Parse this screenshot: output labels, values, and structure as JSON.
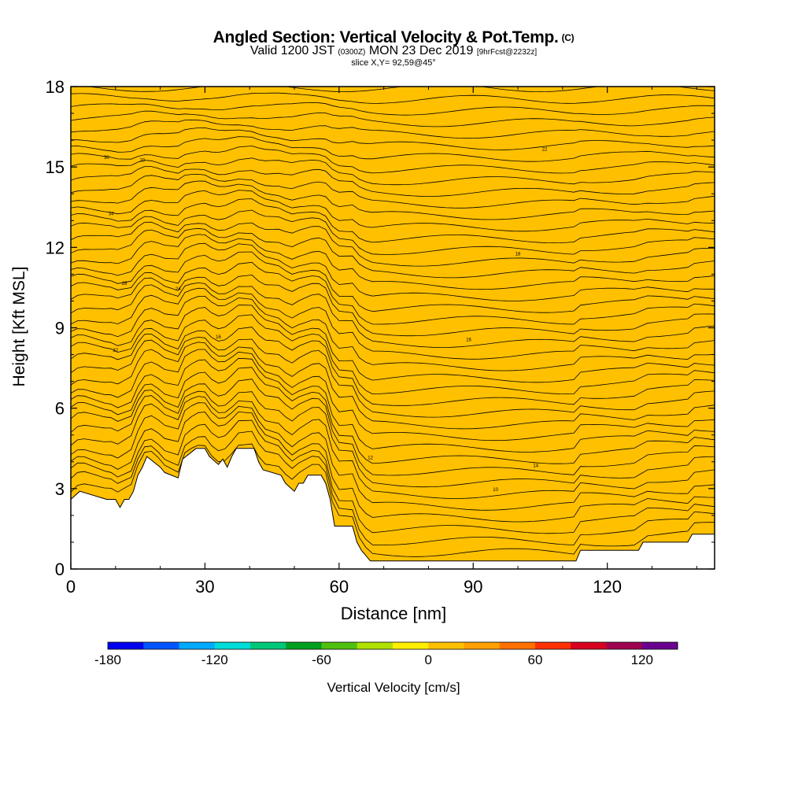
{
  "header": {
    "title": "Angled Section: Vertical Velocity & Pot.Temp.",
    "title_mark": "(C)",
    "valid_pre": "Valid 1200 JST",
    "valid_small": "(0300Z)",
    "valid_date": "MON 23 Dec 2019",
    "valid_fcst": "[9hrFcst@2232z]",
    "slice": "slice X,Y= 92,59@45°"
  },
  "chart_data": {
    "type": "heatmap",
    "xlabel": "Distance [nm]",
    "ylabel": "Height [Kft MSL]",
    "xlim": [
      0,
      144
    ],
    "ylim": [
      0,
      18
    ],
    "xticks": [
      0,
      30,
      60,
      90,
      120
    ],
    "yticks": [
      0,
      3,
      6,
      9,
      12,
      15,
      18
    ],
    "colorbar": {
      "label": "Vertical Velocity [cm/s]",
      "min": -180,
      "max": 140,
      "step": 20,
      "tick_values": [
        -180,
        -120,
        -60,
        0,
        60,
        120
      ],
      "colors": [
        "#0000ee",
        "#0055ff",
        "#00aaff",
        "#00dcd8",
        "#00c878",
        "#00a020",
        "#50c010",
        "#b0e000",
        "#ffee00",
        "#ffc000",
        "#ffa000",
        "#ff7000",
        "#ff3000",
        "#d80020",
        "#a00050",
        "#6a0090"
      ]
    },
    "terrain": [
      [
        0,
        2.6
      ],
      [
        2,
        2.9
      ],
      [
        8,
        2.6
      ],
      [
        10,
        2.6
      ],
      [
        11,
        2.3
      ],
      [
        12,
        2.6
      ],
      [
        13,
        2.6
      ],
      [
        14,
        2.9
      ],
      [
        15,
        3.5
      ],
      [
        16,
        3.8
      ],
      [
        17,
        4.2
      ],
      [
        20,
        3.8
      ],
      [
        21,
        3.6
      ],
      [
        24,
        3.4
      ],
      [
        25,
        4.1
      ],
      [
        28,
        4.5
      ],
      [
        30,
        4.5
      ],
      [
        31,
        4.2
      ],
      [
        33,
        3.9
      ],
      [
        34,
        4.1
      ],
      [
        35,
        3.8
      ],
      [
        36,
        4.2
      ],
      [
        37,
        4.5
      ],
      [
        41,
        4.5
      ],
      [
        42,
        4.0
      ],
      [
        43,
        3.7
      ],
      [
        47,
        3.5
      ],
      [
        48,
        3.2
      ],
      [
        50,
        2.9
      ],
      [
        51,
        3.2
      ],
      [
        52,
        3.2
      ],
      [
        53,
        3.5
      ],
      [
        56,
        3.5
      ],
      [
        57,
        3.2
      ],
      [
        58,
        2.6
      ],
      [
        59,
        1.6
      ],
      [
        60,
        1.6
      ],
      [
        63,
        1.6
      ],
      [
        64,
        1.0
      ],
      [
        65,
        0.7
      ],
      [
        67,
        0.3
      ],
      [
        103,
        0.3
      ],
      [
        113,
        0.3
      ],
      [
        114,
        0.7
      ],
      [
        127,
        0.7
      ],
      [
        128,
        1.0
      ],
      [
        138,
        1.0
      ],
      [
        139,
        1.3
      ],
      [
        144,
        1.3
      ]
    ],
    "series": [
      {
        "values": [
          [
            4,
            5.2
          ],
          [
            6.5,
            7.5
          ],
          [
            12,
            6.8
          ],
          [
            18.5,
            6.5
          ],
          [
            7,
            6.5
          ],
          [
            14,
            8
          ],
          [
            11,
            7
          ],
          [
            10,
            7
          ]
        ]
      },
      {
        "values": [
          [
            18,
            12.5
          ],
          [
            17,
            13.3
          ],
          [
            10,
            7
          ],
          [
            17.5,
            13
          ],
          [
            10,
            14
          ]
        ]
      },
      {
        "values": [
          [
            37,
            5.7
          ],
          [
            38,
            6.2
          ],
          [
            6.5,
            7
          ]
        ]
      },
      {
        "values": [
          [
            56,
            5.0
          ],
          [
            56,
            5.6
          ],
          [
            6,
            9
          ]
        ]
      },
      {
        "values": [
          [
            40,
            12.7
          ],
          [
            41,
            14.5
          ],
          [
            4.5,
            14
          ]
        ]
      },
      {
        "values": [
          [
            60.5,
            11
          ],
          [
            61,
            12.5
          ],
          [
            6,
            15
          ]
        ]
      },
      {
        "values": [
          [
            55.5,
            3.6
          ],
          [
            56,
            4.5
          ],
          [
            4,
            4.5
          ]
        ]
      },
      {
        "values": [
          [
            73,
            3.0
          ],
          [
            80,
            2.5
          ],
          [
            10,
            5
          ]
        ]
      },
      {
        "values": [
          [
            120,
            15.4
          ],
          [
            119,
            14
          ],
          [
            16,
            18
          ]
        ]
      },
      {
        "values": [
          [
            109,
            2.5
          ],
          [
            110,
            2.5
          ],
          [
            10,
            6
          ]
        ]
      }
    ],
    "isentropes": {
      "count": 43,
      "labels": [
        {
          "text": "10",
          "x": 95,
          "y": 2.9
        },
        {
          "text": "12",
          "x": 67,
          "y": 4.1
        },
        {
          "text": "14",
          "x": 104,
          "y": 3.8
        },
        {
          "text": "16",
          "x": 89,
          "y": 8.5
        },
        {
          "text": "16",
          "x": 33,
          "y": 8.6
        },
        {
          "text": "18",
          "x": 100,
          "y": 11.7
        },
        {
          "text": "20",
          "x": 16,
          "y": 15.2
        },
        {
          "text": "22",
          "x": 106,
          "y": 15.6
        },
        {
          "text": "24",
          "x": 24,
          "y": 10.4
        },
        {
          "text": "28",
          "x": 12,
          "y": 10.6
        },
        {
          "text": "30",
          "x": 8,
          "y": 15.3
        },
        {
          "text": "32",
          "x": 10,
          "y": 8.1
        },
        {
          "text": "34",
          "x": 9,
          "y": 13.2
        }
      ]
    }
  }
}
